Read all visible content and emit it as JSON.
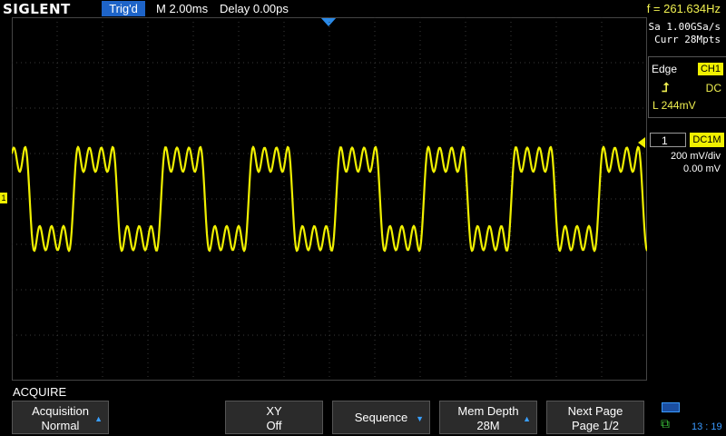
{
  "header": {
    "brand": "SIGLENT",
    "trigger_status": "Trig'd",
    "timebase": "M 2.00ms",
    "delay": "Delay 0.00ps",
    "frequency": "f = 261.634Hz"
  },
  "acquisition_info": {
    "sample_rate": "Sa 1.00GSa/s",
    "memory": "Curr 28Mpts"
  },
  "trigger_panel": {
    "type": "Edge",
    "source": "CH1",
    "slope_icon": "rising-edge-icon",
    "coupling": "DC",
    "level": "L  244mV"
  },
  "channel_panel": {
    "number": "1",
    "coupling": "DC1M",
    "scale": "200 mV/div",
    "offset": "0.00 mV"
  },
  "colors": {
    "trace": "#f0f000",
    "accent": "#1e64c8",
    "grid": "#3a3a3a"
  },
  "menu": {
    "title": "ACQUIRE",
    "softkeys": [
      {
        "line1": "Acquisition",
        "line2": "Normal"
      },
      {
        "line1": "",
        "line2": ""
      },
      {
        "line1": "XY",
        "line2": "Off"
      },
      {
        "line1": "Sequence",
        "line2": ""
      },
      {
        "line1": "Mem Depth",
        "line2": "28M"
      },
      {
        "line1": "Next Page",
        "line2": "Page 1/2"
      }
    ]
  },
  "status": {
    "time": "13 : 19"
  }
}
